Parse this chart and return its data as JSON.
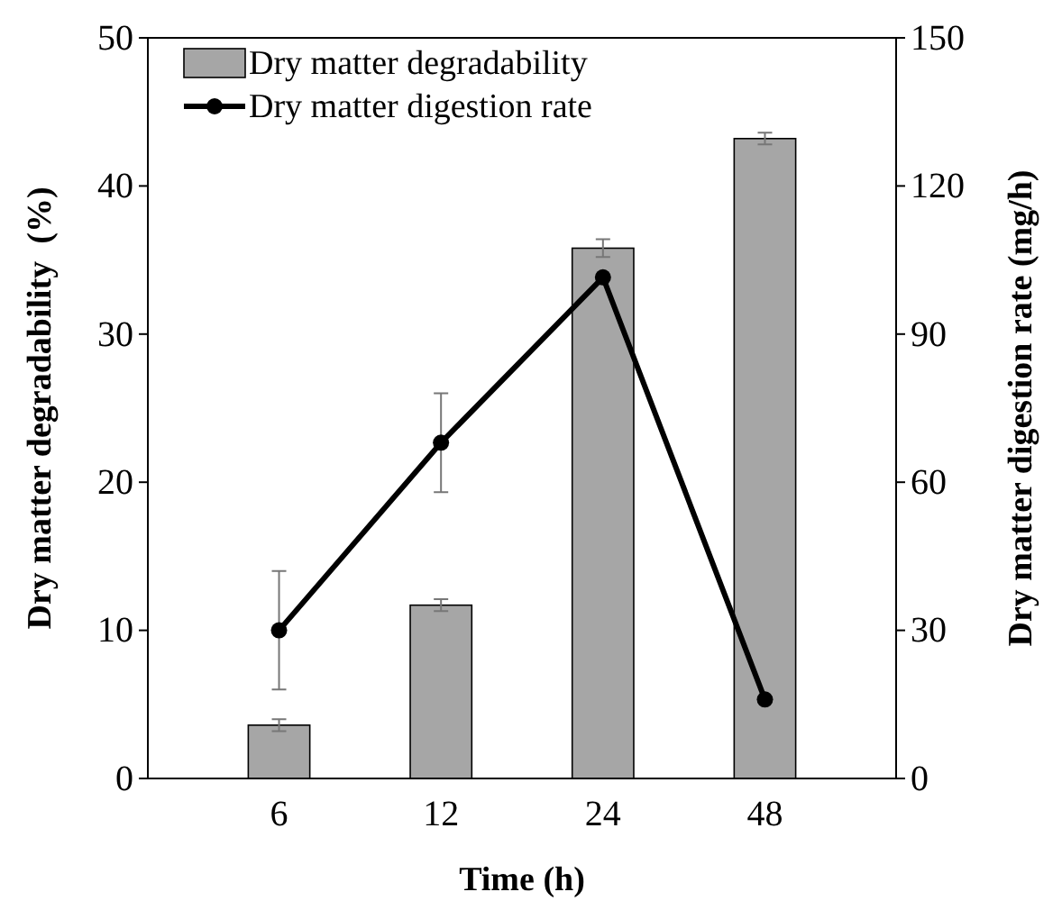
{
  "chart_data": {
    "type": "bar",
    "xlabel": "Time (h)",
    "ylabel": "Dry matter degradability  (%)",
    "y2label": "Dry matter digestion rate (mg/h)",
    "categories": [
      "6",
      "12",
      "24",
      "48"
    ],
    "series": [
      {
        "name": "Dry matter degradability",
        "color": "#a6a6a6",
        "values": [
          3.6,
          11.7,
          35.8,
          43.2
        ],
        "errors": [
          0.4,
          0.4,
          0.6,
          0.4
        ]
      },
      {
        "name": "Dry matter digestion rate",
        "type": "line",
        "axis": "y2",
        "color": "#000000",
        "values": [
          30,
          68,
          101.5,
          16
        ],
        "errors": [
          12,
          10,
          null,
          null
        ]
      }
    ],
    "ylim": [
      0,
      50
    ],
    "yticks": [
      0,
      10,
      20,
      30,
      40,
      50
    ],
    "y2lim": [
      0,
      150
    ],
    "y2ticks": [
      0,
      30,
      60,
      90,
      120,
      150
    ],
    "legend": "top left",
    "marker": "circle",
    "grid": false
  }
}
